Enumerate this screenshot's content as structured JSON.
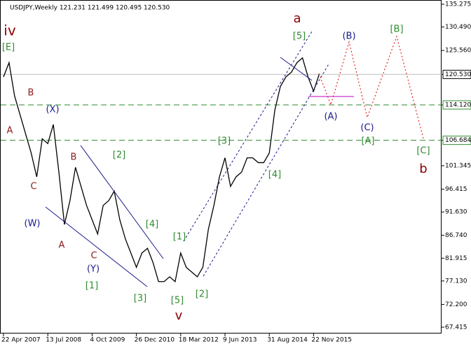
{
  "chart_data": {
    "type": "line",
    "title": "USDJPY,Weekly  121.231 121.499 120.495 120.530",
    "categories": [
      "22 Apr 2007",
      null,
      null,
      null,
      null,
      null,
      null,
      null,
      "13 Jul 2008",
      null,
      null,
      null,
      null,
      null,
      null,
      null,
      "4 Oct 2009",
      null,
      null,
      null,
      null,
      null,
      null,
      null,
      "26 Dec 2010",
      null,
      null,
      null,
      null,
      null,
      null,
      null,
      "18 Mar 2012",
      null,
      null,
      null,
      null,
      null,
      null,
      null,
      "9 Jun 2013",
      null,
      null,
      null,
      null,
      null,
      null,
      null,
      "31 Aug 2014",
      null,
      null,
      null,
      null,
      null,
      null,
      null,
      "22 Nov 2015",
      null
    ],
    "values": [
      120,
      123,
      116,
      112,
      108,
      104,
      99,
      107,
      106,
      110,
      100,
      89,
      94,
      101,
      97,
      93,
      90,
      87,
      93,
      94,
      96,
      90,
      86,
      83,
      80,
      83,
      84,
      81,
      77,
      77,
      78,
      77,
      83,
      80,
      79,
      78,
      80,
      88,
      93,
      99,
      103,
      97,
      99,
      100,
      103,
      103,
      102,
      102,
      104,
      113,
      118,
      120,
      121,
      123,
      124,
      120,
      117,
      120.53
    ],
    "color": "#000000",
    "ylim": [
      66.09,
      136.16
    ],
    "yticks": [
      135.275,
      {
        "value": 130.49,
        "label": "130.490"
      },
      {
        "value": 125.56,
        "label": "125.560"
      },
      {
        "value": 120.53,
        "label": "120.530"
      },
      {
        "value": 114.12,
        "label": "114.120"
      },
      106.684,
      101.345,
      96.415,
      {
        "value": 91.63,
        "label": "91.630"
      },
      {
        "value": 86.74,
        "label": "86.740"
      },
      81.915,
      {
        "value": 77.13,
        "label": "77.130"
      },
      {
        "value": 72.2,
        "label": "72.200"
      },
      67.415
    ],
    "hlines": [
      {
        "value": 120.53,
        "color": "#c0c0c0",
        "style": "solid"
      },
      {
        "value": 114.12,
        "color": "#2e8b2e",
        "style": "dashed"
      },
      {
        "value": 106.684,
        "color": "#2e8b2e",
        "style": "dashed"
      }
    ],
    "annotations": [
      "iv",
      "[E]",
      "B",
      "(X)",
      "A",
      "C",
      "(W)",
      "A",
      "B",
      "C",
      "(Y)",
      "[1]",
      "[2]",
      "[3]",
      "[4]",
      "[5]",
      "v",
      "[1]",
      "[2]",
      "[3]",
      "[4]",
      "[5]",
      "a",
      "(A)",
      "(B)",
      "(C)",
      "[A]",
      "[B]",
      "[C]",
      "b"
    ]
  }
}
